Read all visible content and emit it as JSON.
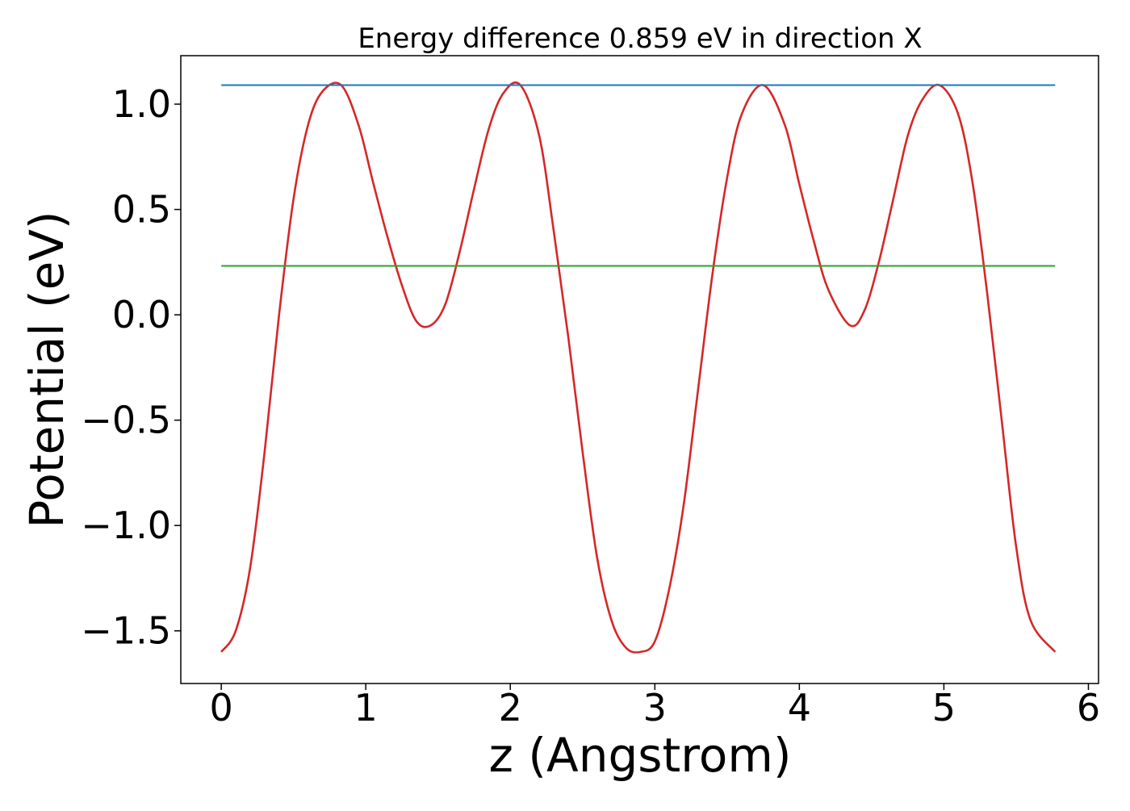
{
  "chart_data": {
    "type": "line",
    "title": "Energy difference 0.859 eV in direction X",
    "xlabel": "z (Angstrom)",
    "ylabel": "Potential (eV)",
    "xlim": [
      -0.28,
      6.07
    ],
    "ylim": [
      -1.75,
      1.23
    ],
    "grid": false,
    "x_ticks": [
      {
        "value": 0,
        "label": "0"
      },
      {
        "value": 1,
        "label": "1"
      },
      {
        "value": 2,
        "label": "2"
      },
      {
        "value": 3,
        "label": "3"
      },
      {
        "value": 4,
        "label": "4"
      },
      {
        "value": 5,
        "label": "5"
      },
      {
        "value": 6,
        "label": "6"
      }
    ],
    "y_ticks": [
      {
        "value": 1.0,
        "label": "1.0"
      },
      {
        "value": 0.5,
        "label": "0.5"
      },
      {
        "value": 0.0,
        "label": "0.0"
      },
      {
        "value": -0.5,
        "label": "−0.5"
      },
      {
        "value": -1.0,
        "label": "−1.0"
      },
      {
        "value": -1.5,
        "label": "−1.5"
      }
    ],
    "series": [
      {
        "kind": "curve",
        "color": "#d62728",
        "x": [
          0,
          0.1,
          0.2,
          0.3,
          0.4,
          0.5,
          0.6,
          0.7,
          0.83,
          0.95,
          1.05,
          1.15,
          1.25,
          1.35,
          1.45,
          1.55,
          1.65,
          1.75,
          1.85,
          1.95,
          2.07,
          2.2,
          2.3,
          2.4,
          2.5,
          2.6,
          2.7,
          2.8,
          2.9,
          3.0,
          3.1,
          3.2,
          3.3,
          3.4,
          3.5,
          3.6,
          3.75,
          3.9,
          4.0,
          4.1,
          4.2,
          4.35,
          4.45,
          4.55,
          4.65,
          4.75,
          4.85,
          4.97,
          5.1,
          5.2,
          5.3,
          5.4,
          5.5,
          5.6,
          5.77
        ],
        "y": [
          -1.6,
          -1.5,
          -1.2,
          -0.65,
          0.0,
          0.55,
          0.9,
          1.06,
          1.09,
          0.9,
          0.63,
          0.37,
          0.14,
          -0.03,
          -0.05,
          0.05,
          0.3,
          0.6,
          0.88,
          1.05,
          1.09,
          0.85,
          0.4,
          -0.1,
          -0.65,
          -1.15,
          -1.45,
          -1.58,
          -1.6,
          -1.55,
          -1.3,
          -0.9,
          -0.35,
          0.2,
          0.65,
          0.95,
          1.09,
          0.9,
          0.62,
          0.35,
          0.12,
          -0.05,
          0.02,
          0.25,
          0.55,
          0.85,
          1.02,
          1.09,
          0.95,
          0.62,
          0.1,
          -0.5,
          -1.1,
          -1.45,
          -1.6
        ]
      },
      {
        "kind": "hline",
        "color": "#1f77b4",
        "y": 1.09,
        "x": [
          0,
          5.77
        ]
      },
      {
        "kind": "hline",
        "color": "#2ca02c",
        "y": 0.232,
        "x": [
          0,
          5.77
        ]
      }
    ]
  }
}
